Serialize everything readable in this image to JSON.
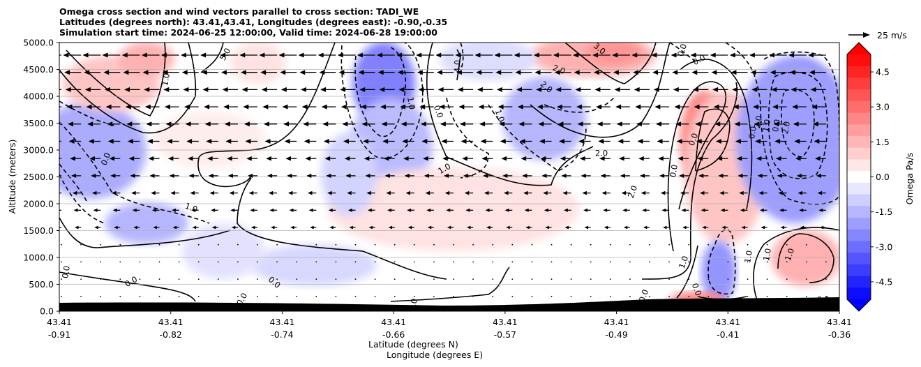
{
  "title_lines": [
    "Omega cross section and wind vectors parallel to cross section: TADI_WE",
    "Latitudes (degrees north): 43.41,43.41, Longitudes (degrees east): -0.90,-0.35",
    "Simulation start time: 2024-06-25 12:00:00, Valid time: 2024-06-28 19:00:00"
  ],
  "chart_data": {
    "type": "heatmap",
    "xlabel": "Latitude (degrees N)",
    "xlabel2": "Longitude (degrees E)",
    "ylabel": "Altitude (meters)",
    "ylim": [
      0,
      5000
    ],
    "y_ticks": [
      "0.0",
      "500.0",
      "1000.0",
      "1500.0",
      "2000.0",
      "2500.0",
      "3000.0",
      "3500.0",
      "4000.0",
      "4500.0",
      "5000.0"
    ],
    "x_ticks": [
      {
        "lat": "43.41",
        "lon": "-0.91"
      },
      {
        "lat": "43.41",
        "lon": "-0.82"
      },
      {
        "lat": "43.41",
        "lon": "-0.74"
      },
      {
        "lat": "43.41",
        "lon": "-0.66"
      },
      {
        "lat": "43.41",
        "lon": "-0.57"
      },
      {
        "lat": "43.41",
        "lon": "-0.49"
      },
      {
        "lat": "43.41",
        "lon": "-0.41"
      },
      {
        "lat": "43.41",
        "lon": "-0.36"
      }
    ],
    "grid": "horizontal",
    "colorbar": {
      "label": "Omega Pa/s",
      "range": [
        -5.25,
        5.25
      ],
      "step": 0.5,
      "extend": "both",
      "ticks": [
        "-4.5",
        "-3.0",
        "-1.5",
        "0.0",
        "1.5",
        "3.0",
        "4.5"
      ]
    },
    "colors": {
      "negative": "#0000ff",
      "positive": "#ff0000",
      "neutral": "#ffffff",
      "terrain": "#000000"
    },
    "vector_key": {
      "label": "25 m/s"
    },
    "contour_labels": [
      "1.0",
      "0.0",
      "0.0",
      "0.0",
      "0.0",
      "2.0",
      "1.0",
      "0.0",
      "1.0",
      "0.0",
      "1.0",
      "2.0",
      "2.0",
      "3.0",
      "4.0",
      "5.0",
      "1.0",
      "2.0",
      "0.0",
      "0.0",
      "1.0",
      "0.0",
      "0.0",
      "0.0",
      "2.0",
      "1.0",
      "0.0",
      "2.0",
      "1.0",
      "1.0",
      "1.0",
      "0.0",
      "0.0",
      "0.0",
      "0.0",
      "0.0",
      "2.0",
      "1.0"
    ]
  }
}
